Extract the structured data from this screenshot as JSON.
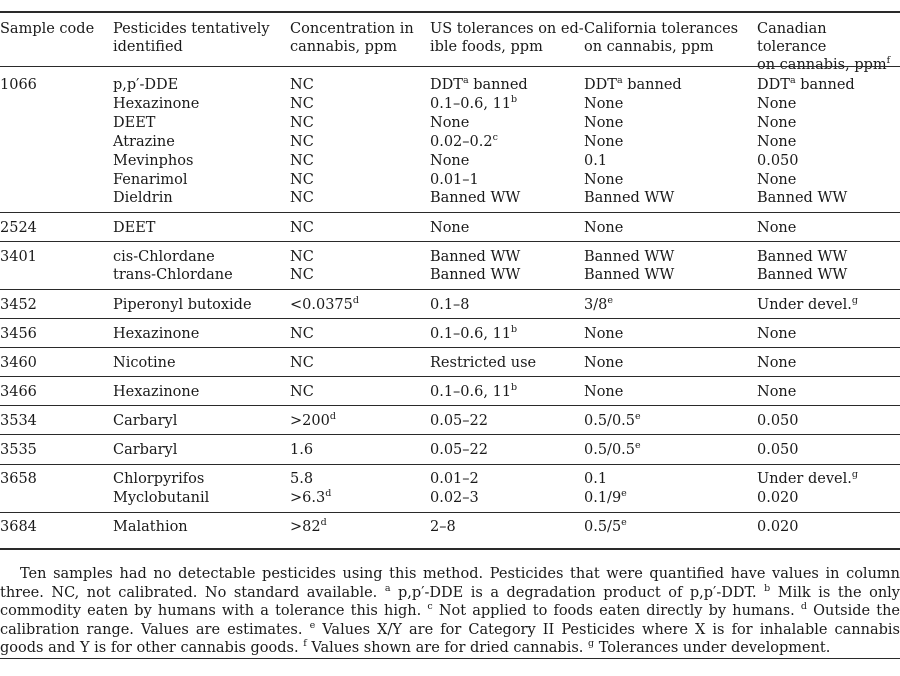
{
  "table": {
    "headers": [
      {
        "lines": [
          "Sample code"
        ],
        "sup": ""
      },
      {
        "lines": [
          "Pesticides tentatively",
          "identified"
        ],
        "sup": ""
      },
      {
        "lines": [
          "Concentration in",
          "cannabis, ppm"
        ],
        "sup": ""
      },
      {
        "lines": [
          "US tolerances on ed-",
          "ible foods, ppm"
        ],
        "sup": ""
      },
      {
        "lines": [
          "California tolerances",
          "on cannabis, ppm"
        ],
        "sup": ""
      },
      {
        "lines": [
          "Canadian tolerance",
          "on cannabis, ppm"
        ],
        "sup": "f"
      }
    ],
    "groups": [
      {
        "code": "1066",
        "rows": [
          [
            {
              "t": "p,p′-DDE"
            },
            {
              "t": "NC"
            },
            {
              "t": "DDT",
              "s": "a",
              "a": " banned"
            },
            {
              "t": "DDT",
              "s": "a",
              "a": " banned"
            },
            {
              "t": "DDT",
              "s": "a",
              "a": " banned"
            }
          ],
          [
            {
              "t": "Hexazinone"
            },
            {
              "t": "NC"
            },
            {
              "t": "0.1–0.6, 11",
              "s": "b"
            },
            {
              "t": "None"
            },
            {
              "t": "None"
            }
          ],
          [
            {
              "t": "DEET"
            },
            {
              "t": "NC"
            },
            {
              "t": "None"
            },
            {
              "t": "None"
            },
            {
              "t": "None"
            }
          ],
          [
            {
              "t": "Atrazine"
            },
            {
              "t": "NC"
            },
            {
              "t": "0.02–0.2",
              "s": "c"
            },
            {
              "t": "None"
            },
            {
              "t": "None"
            }
          ],
          [
            {
              "t": "Mevinphos"
            },
            {
              "t": "NC"
            },
            {
              "t": "None"
            },
            {
              "t": "0.1"
            },
            {
              "t": "0.050"
            }
          ],
          [
            {
              "t": "Fenarimol"
            },
            {
              "t": "NC"
            },
            {
              "t": "0.01–1"
            },
            {
              "t": "None"
            },
            {
              "t": "None"
            }
          ],
          [
            {
              "t": "Dieldrin"
            },
            {
              "t": "NC"
            },
            {
              "t": "Banned WW"
            },
            {
              "t": "Banned WW"
            },
            {
              "t": "Banned WW"
            }
          ]
        ]
      },
      {
        "code": "2524",
        "rows": [
          [
            {
              "t": "DEET"
            },
            {
              "t": "NC"
            },
            {
              "t": "None"
            },
            {
              "t": "None"
            },
            {
              "t": "None"
            }
          ]
        ]
      },
      {
        "code": "3401",
        "rows": [
          [
            {
              "t": "cis-Chlordane"
            },
            {
              "t": "NC"
            },
            {
              "t": "Banned WW"
            },
            {
              "t": "Banned WW"
            },
            {
              "t": "Banned WW"
            }
          ],
          [
            {
              "t": "trans-Chlordane"
            },
            {
              "t": "NC"
            },
            {
              "t": "Banned WW"
            },
            {
              "t": "Banned WW"
            },
            {
              "t": "Banned WW"
            }
          ]
        ]
      },
      {
        "code": "3452",
        "rows": [
          [
            {
              "t": "Piperonyl butoxide"
            },
            {
              "t": "<0.0375",
              "s": "d"
            },
            {
              "t": "0.1–8"
            },
            {
              "t": "3/8",
              "s": "e"
            },
            {
              "t": "Under devel.",
              "s": "g"
            }
          ]
        ]
      },
      {
        "code": "3456",
        "rows": [
          [
            {
              "t": "Hexazinone"
            },
            {
              "t": "NC"
            },
            {
              "t": "0.1–0.6, 11",
              "s": "b"
            },
            {
              "t": "None"
            },
            {
              "t": "None"
            }
          ]
        ]
      },
      {
        "code": "3460",
        "rows": [
          [
            {
              "t": "Nicotine"
            },
            {
              "t": "NC"
            },
            {
              "t": "Restricted use"
            },
            {
              "t": "None"
            },
            {
              "t": "None"
            }
          ]
        ]
      },
      {
        "code": "3466",
        "rows": [
          [
            {
              "t": "Hexazinone"
            },
            {
              "t": "NC"
            },
            {
              "t": "0.1–0.6, 11",
              "s": "b"
            },
            {
              "t": "None"
            },
            {
              "t": "None"
            }
          ]
        ]
      },
      {
        "code": "3534",
        "rows": [
          [
            {
              "t": "Carbaryl"
            },
            {
              "t": ">200",
              "s": "d"
            },
            {
              "t": "0.05–22"
            },
            {
              "t": "0.5/0.5",
              "s": "e"
            },
            {
              "t": "0.050"
            }
          ]
        ]
      },
      {
        "code": "3535",
        "rows": [
          [
            {
              "t": "Carbaryl"
            },
            {
              "t": "1.6"
            },
            {
              "t": "0.05–22"
            },
            {
              "t": "0.5/0.5",
              "s": "e"
            },
            {
              "t": "0.050"
            }
          ]
        ]
      },
      {
        "code": "3658",
        "rows": [
          [
            {
              "t": "Chlorpyrifos"
            },
            {
              "t": "5.8"
            },
            {
              "t": "0.01–2"
            },
            {
              "t": "0.1"
            },
            {
              "t": "Under devel.",
              "s": "g"
            }
          ],
          [
            {
              "t": "Myclobutanil"
            },
            {
              "t": ">6.3",
              "s": "d"
            },
            {
              "t": "0.02–3"
            },
            {
              "t": "0.1/9",
              "s": "e"
            },
            {
              "t": "0.020"
            }
          ]
        ]
      },
      {
        "code": "3684",
        "rows": [
          [
            {
              "t": "Malathion"
            },
            {
              "t": ">82",
              "s": "d"
            },
            {
              "t": "2–8"
            },
            {
              "t": "0.5/5",
              "s": "e"
            },
            {
              "t": "0.020"
            }
          ]
        ]
      }
    ]
  },
  "notes": [
    {
      "t": "Ten samples had no detectable pesticides using this method. Pesticides that were quantified have values in column three. NC, not calibrated. No standard available. "
    },
    {
      "s": "a"
    },
    {
      "t": " p,p′-DDE is a degradation product of p,p′-DDT. "
    },
    {
      "s": "b"
    },
    {
      "t": " Milk is the only commodity eaten by humans with a tolerance this high. "
    },
    {
      "s": "c"
    },
    {
      "t": " Not applied to foods eaten directly by humans. "
    },
    {
      "s": "d"
    },
    {
      "t": " Outside the calibration range. Values are estimates. "
    },
    {
      "s": "e"
    },
    {
      "t": " Values X/Y are for Category II Pesticides where X is for inhalable cannabis goods and Y is for other cannabis goods. "
    },
    {
      "s": "f"
    },
    {
      "t": " Values shown are for dried cannabis. "
    },
    {
      "s": "g"
    },
    {
      "t": " Tolerances under development."
    }
  ]
}
